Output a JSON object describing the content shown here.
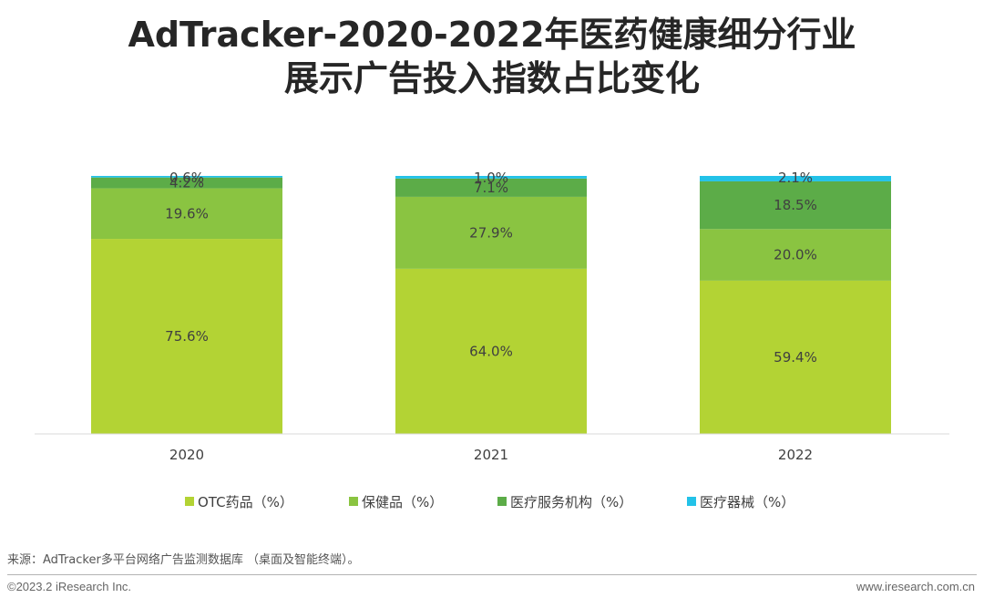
{
  "header": {
    "title_line1": "AdTracker-2020-2022年医药健康细分行业",
    "title_line2": "展示广告投入指数占比变化"
  },
  "chart_data": {
    "type": "bar",
    "stacked": true,
    "categories": [
      "2020",
      "2021",
      "2022"
    ],
    "series": [
      {
        "name": "OTC药品（%）",
        "color": "#b3d334",
        "values": [
          75.6,
          64.0,
          59.4
        ],
        "labels": [
          "75.6%",
          "64.0%",
          "59.4%"
        ]
      },
      {
        "name": "保健品（%）",
        "color": "#8ac441",
        "values": [
          19.6,
          27.9,
          20.0
        ],
        "labels": [
          "19.6%",
          "27.9%",
          "20.0%"
        ]
      },
      {
        "name": "医疗服务机构（%）",
        "color": "#5cac48",
        "values": [
          4.2,
          7.1,
          18.5
        ],
        "labels": [
          "4.2%",
          "7.1%",
          "18.5%"
        ]
      },
      {
        "name": "医疗器械（%）",
        "color": "#23c2e8",
        "values": [
          0.6,
          1.0,
          2.1
        ],
        "labels": [
          "0.6%",
          "1.0%",
          "2.1%"
        ]
      }
    ],
    "ylim": [
      0,
      100
    ],
    "grid": false,
    "legend_position": "bottom"
  },
  "footer": {
    "source": "来源：AdTracker多平台网络广告监测数据库 （桌面及智能终端）。",
    "copyright": "©2023.2 iResearch Inc.",
    "website": "www.iresearch.com.cn"
  }
}
